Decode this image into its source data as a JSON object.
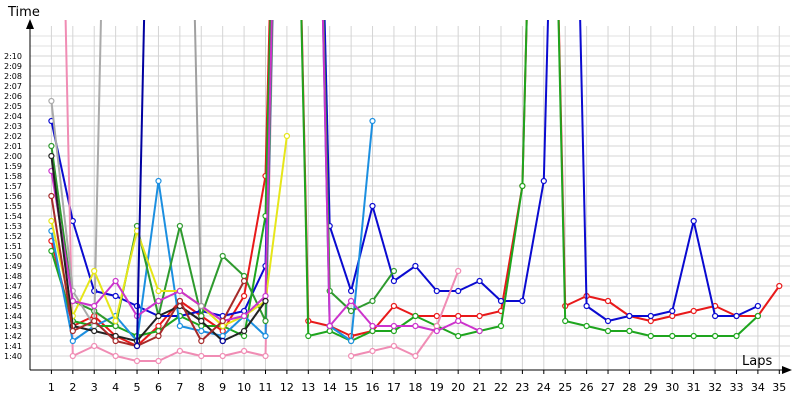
{
  "chart_data": {
    "type": "line",
    "xlabel": "Laps",
    "ylabel": "Time",
    "x": [
      1,
      2,
      3,
      4,
      5,
      6,
      7,
      8,
      9,
      10,
      11,
      12,
      13,
      14,
      15,
      16,
      17,
      18,
      19,
      20,
      21,
      22,
      23,
      24,
      25,
      26,
      27,
      28,
      29,
      30,
      31,
      32,
      33,
      34,
      35
    ],
    "xlim": [
      0,
      35.5
    ],
    "ylim_seconds": [
      99,
      135
    ],
    "y_tick_labels": [
      "1:40",
      "1:41",
      "1:42",
      "1:43",
      "1:44",
      "1:45",
      "1:46",
      "1:47",
      "1:48",
      "1:49",
      "1:50",
      "1:51",
      "1:52",
      "1:53",
      "1:54",
      "1:55",
      "1:56",
      "1:57",
      "1:58",
      "1:59",
      "2:00",
      "2:01",
      "2:02",
      "2:03",
      "2:04",
      "2:05",
      "2:06",
      "2:07",
      "2:08",
      "2:09",
      "2:10"
    ],
    "y_tick_values": [
      100,
      101,
      102,
      103,
      104,
      105,
      106,
      107,
      108,
      109,
      110,
      111,
      112,
      113,
      114,
      115,
      116,
      117,
      118,
      119,
      120,
      121,
      122,
      123,
      124,
      125,
      126,
      127,
      128,
      129,
      130
    ],
    "grid": true,
    "series": [
      {
        "color": "#e8191a",
        "values": [
          111.5,
          103.0,
          104.0,
          102.0,
          101.0,
          103.0,
          105.5,
          104.0,
          102.5,
          106.0,
          118.0,
          200.0,
          103.5,
          103.0,
          102.0,
          102.5,
          105.0,
          104.0,
          104.0,
          104.0,
          104.0,
          104.5,
          117.0,
          200.0,
          105.0,
          106.0,
          105.5,
          104.0,
          103.5,
          104.0,
          104.5,
          105.0,
          104.0,
          104.0,
          107.0
        ]
      },
      {
        "color": "#0a0ad0",
        "values": [
          123.5,
          113.5,
          106.5,
          106.0,
          105.0,
          104.0,
          104.0,
          104.5,
          104.0,
          104.5,
          109.0,
          200.0,
          200.0,
          113.0,
          106.5,
          115.0,
          107.5,
          109.0,
          106.5,
          106.5,
          107.5,
          105.5,
          105.5,
          117.5,
          200.0,
          105.0,
          103.5,
          104.0,
          104.0,
          104.5,
          113.5,
          104.0,
          104.0,
          105.0,
          null
        ]
      },
      {
        "color": "#1ea51e",
        "values": [
          110.5,
          103.5,
          103.0,
          103.0,
          102.0,
          102.5,
          104.0,
          103.0,
          103.0,
          102.0,
          114.0,
          200.0,
          102.0,
          102.5,
          101.5,
          102.5,
          102.5,
          104.0,
          103.0,
          102.0,
          102.5,
          103.0,
          117.0,
          200.0,
          103.5,
          103.0,
          102.5,
          102.5,
          102.0,
          102.0,
          102.0,
          102.0,
          102.0,
          104.0,
          null
        ]
      },
      {
        "color": "#f08cb4",
        "values": [
          200.0,
          100.0,
          101.0,
          100.0,
          99.5,
          99.5,
          100.5,
          100.0,
          100.0,
          100.5,
          100.0,
          200.0,
          null,
          null,
          100.0,
          100.5,
          101.0,
          100.0,
          103.0,
          108.5,
          null,
          null,
          null,
          null,
          null,
          null,
          null,
          null,
          null,
          null,
          null,
          null,
          null,
          null,
          null
        ]
      },
      {
        "color": "#1c8fe0",
        "values": [
          112.5,
          101.5,
          103.0,
          104.0,
          101.5,
          117.5,
          103.0,
          102.5,
          102.0,
          104.0,
          102.0,
          200.0,
          200.0,
          103.0,
          101.5,
          123.5,
          null,
          null,
          null,
          null,
          null,
          null,
          null,
          null,
          null,
          null,
          null,
          null,
          null,
          null,
          null,
          null,
          null,
          null,
          null
        ]
      },
      {
        "color": "#2e9a2e",
        "values": [
          121.0,
          105.5,
          104.5,
          103.0,
          113.0,
          104.0,
          113.0,
          104.0,
          110.0,
          108.0,
          103.5,
          200.0,
          200.0,
          106.5,
          104.5,
          105.5,
          108.5,
          null,
          null,
          null,
          null,
          null,
          null,
          null,
          null,
          null,
          null,
          null,
          null,
          null,
          null,
          null,
          null,
          null,
          null
        ]
      },
      {
        "color": "#aaaaaa",
        "values": [
          125.5,
          106.5,
          103.0,
          200.0,
          null,
          null,
          null,
          null,
          null,
          null,
          null,
          null,
          null,
          null,
          null,
          null,
          null,
          null,
          null,
          null,
          null,
          null,
          null,
          null,
          null,
          null,
          null,
          null,
          null,
          null,
          null,
          null,
          null,
          null,
          null
        ]
      },
      {
        "color": "#e6e619",
        "values": [
          113.5,
          104.0,
          108.5,
          103.5,
          112.5,
          106.5,
          106.5,
          105.0,
          103.0,
          104.0,
          105.5,
          122.0,
          null,
          null,
          null,
          null,
          null,
          null,
          null,
          null,
          null,
          null,
          null,
          null,
          null,
          null,
          null,
          null,
          null,
          null,
          null,
          null,
          null,
          null,
          null
        ]
      },
      {
        "color": "#cc33cc",
        "values": [
          118.5,
          105.5,
          105.0,
          107.5,
          104.0,
          105.5,
          106.5,
          105.0,
          103.5,
          104.0,
          106.0,
          200.0,
          200.0,
          103.0,
          105.5,
          103.0,
          103.0,
          103.0,
          102.5,
          103.5,
          102.5,
          null,
          null,
          null,
          null,
          null,
          null,
          null,
          null,
          null,
          null,
          null,
          null,
          null,
          null
        ]
      },
      {
        "color": "#a0a0a0",
        "values": [
          null,
          null,
          null,
          null,
          null,
          200.0,
          200.0,
          105.0,
          null,
          null,
          null,
          null,
          null,
          null,
          null,
          null,
          null,
          null,
          null,
          null,
          null,
          null,
          null,
          null,
          null,
          null,
          null,
          null,
          null,
          null,
          null,
          null,
          null,
          null,
          null
        ]
      },
      {
        "color": "#222222",
        "values": [
          120.0,
          103.0,
          102.5,
          102.0,
          101.5,
          104.0,
          105.0,
          103.5,
          101.5,
          102.5,
          105.5,
          null,
          null,
          null,
          null,
          null,
          null,
          null,
          null,
          null,
          null,
          null,
          null,
          null,
          null,
          null,
          null,
          null,
          null,
          null,
          null,
          null,
          null,
          null,
          null
        ]
      },
      {
        "color": "#a52a2a",
        "values": [
          116.0,
          102.5,
          103.5,
          101.5,
          101.0,
          102.0,
          105.5,
          101.5,
          103.5,
          107.5,
          null,
          null,
          null,
          null,
          null,
          null,
          null,
          null,
          null,
          null,
          null,
          null,
          null,
          null,
          null,
          null,
          null,
          null,
          null,
          null,
          null,
          null,
          null,
          null,
          null
        ]
      },
      {
        "color": "#0000a0",
        "values": [
          null,
          null,
          null,
          null,
          101.0,
          200.0,
          null,
          null,
          101.5,
          null,
          null,
          null,
          null,
          null,
          null,
          null,
          null,
          null,
          null,
          null,
          null,
          null,
          null,
          null,
          null,
          null,
          null,
          null,
          null,
          null,
          null,
          null,
          null,
          null,
          null
        ]
      }
    ]
  }
}
